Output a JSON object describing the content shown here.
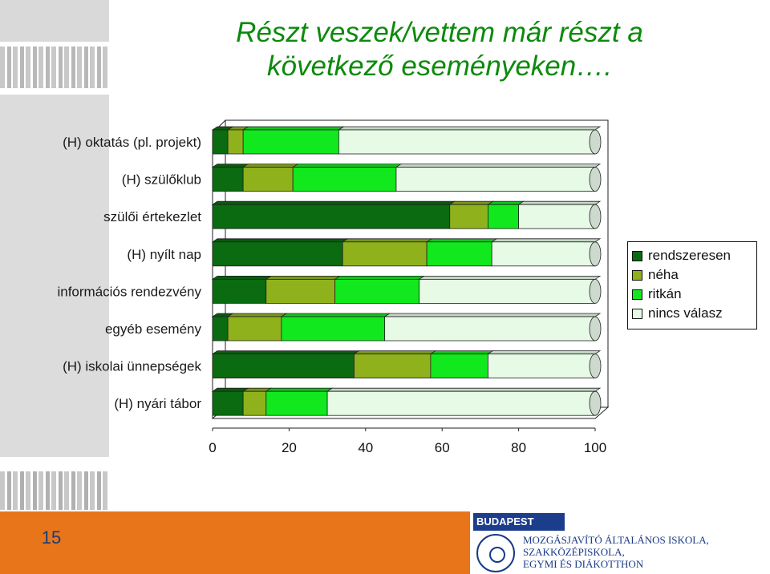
{
  "slide": {
    "title_line1": "Részt veszek/vettem már részt a",
    "title_line2": "következő eseményeken….",
    "page_number": "15",
    "title_color": "#0c8a0c"
  },
  "chart_data": {
    "type": "bar",
    "orientation": "horizontal-stacked-100",
    "categories": [
      "(H) oktatás (pl. projekt)",
      "(H) szülőklub",
      "szülői értekezlet",
      "(H) nyílt nap",
      "információs rendezvény",
      "egyéb esemény",
      "(H) iskolai ünnepségek",
      "(H) nyári tábor"
    ],
    "series": [
      {
        "name": "rendszeresen",
        "color": "#0a6b10",
        "values": [
          4,
          8,
          62,
          34,
          14,
          4,
          37,
          8
        ]
      },
      {
        "name": "néha",
        "color": "#8fb21c",
        "values": [
          4,
          13,
          10,
          22,
          18,
          14,
          20,
          6
        ]
      },
      {
        "name": "ritkán",
        "color": "#11e81d",
        "values": [
          25,
          27,
          8,
          17,
          22,
          27,
          15,
          16
        ]
      },
      {
        "name": "nincs válasz",
        "color": "#e6fae6",
        "values": [
          67,
          52,
          20,
          27,
          46,
          55,
          28,
          70
        ]
      }
    ],
    "x_ticks": [
      "0",
      "20",
      "40",
      "60",
      "80",
      "100"
    ],
    "xlim": [
      0,
      100
    ],
    "legend_position": "right",
    "grid": false
  },
  "footer": {
    "logo_text": "BUDAPEST",
    "school_line1": "MOZGÁSJAVÍTÓ ÁLTALÁNOS ISKOLA,",
    "school_line2": "SZAKKÖZÉPISKOLA,",
    "school_line3": "EGYMI ÉS DIÁKOTTHON"
  }
}
